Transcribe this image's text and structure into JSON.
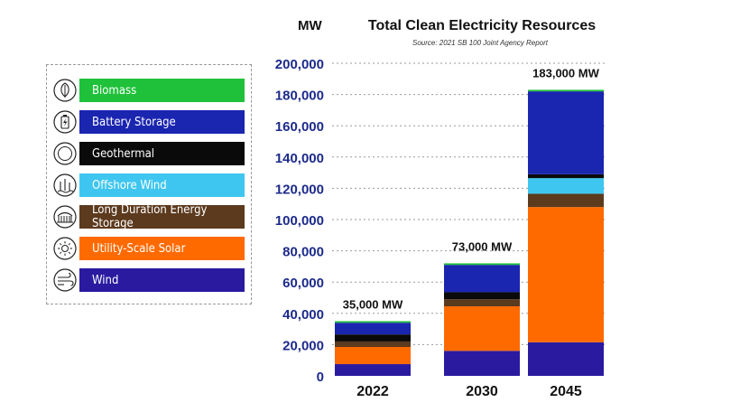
{
  "chart_data": {
    "type": "bar",
    "stacked": true,
    "title": "Total Clean Electricity Resources",
    "subtitle": "Source: 2021 SB 100 Joint Agency Report",
    "ylabel": "MW",
    "ylim": [
      0,
      200000
    ],
    "yticks": [
      0,
      20000,
      40000,
      60000,
      80000,
      100000,
      120000,
      140000,
      160000,
      180000,
      200000
    ],
    "ytick_labels": [
      "0",
      "20,000",
      "40,000",
      "60,000",
      "80,000",
      "100,000",
      "120,000",
      "140,000",
      "160,000",
      "180,000",
      "200,000"
    ],
    "grid": true,
    "legend_position": "left",
    "categories": [
      "2022",
      "2030",
      "2045"
    ],
    "totals": [
      "35,000 MW",
      "73,000 MW",
      "183,000 MW"
    ],
    "series": [
      {
        "name": "Wind",
        "color": "#2a1aa0",
        "icon": "wind-icon",
        "values": [
          7500,
          16000,
          21500
        ]
      },
      {
        "name": "Utility-Scale Solar",
        "color": "#ff6a00",
        "icon": "sun-icon",
        "values": [
          11000,
          28500,
          86500
        ]
      },
      {
        "name": "Long Duration Energy Storage",
        "color": "#5c3a1e",
        "icon": "storage-facility-icon",
        "values": [
          3500,
          4500,
          8500
        ]
      },
      {
        "name": "Offshore Wind",
        "color": "#3fc6f0",
        "icon": "offshore-wind-icon",
        "values": [
          0,
          0,
          10000
        ]
      },
      {
        "name": "Geothermal",
        "color": "#0a0a0a",
        "icon": "geothermal-icon",
        "values": [
          4500,
          4500,
          2500
        ]
      },
      {
        "name": "Battery Storage",
        "color": "#1a25b0",
        "icon": "battery-icon",
        "values": [
          7500,
          17500,
          53000
        ]
      },
      {
        "name": "Biomass",
        "color": "#1fc13a",
        "icon": "leaf-icon",
        "values": [
          1000,
          1000,
          1000
        ]
      }
    ]
  },
  "legend": {
    "items": [
      {
        "label": "Biomass",
        "color": "#1fc13a",
        "icon": "leaf-icon"
      },
      {
        "label": "Battery Storage",
        "color": "#1a25b0",
        "icon": "battery-icon"
      },
      {
        "label": "Geothermal",
        "color": "#0a0a0a",
        "icon": "geothermal-icon"
      },
      {
        "label": "Offshore Wind",
        "color": "#3fc6f0",
        "icon": "offshore-wind-icon"
      },
      {
        "label": "Long Duration Energy Storage",
        "color": "#5c3a1e",
        "icon": "storage-facility-icon"
      },
      {
        "label": "Utility-Scale Solar",
        "color": "#ff6a00",
        "icon": "sun-icon"
      },
      {
        "label": "Wind",
        "color": "#2a1aa0",
        "icon": "wind-icon"
      }
    ]
  },
  "colors": {
    "axis_text": "#1c2a8c",
    "gridline": "#9a9a9a"
  }
}
